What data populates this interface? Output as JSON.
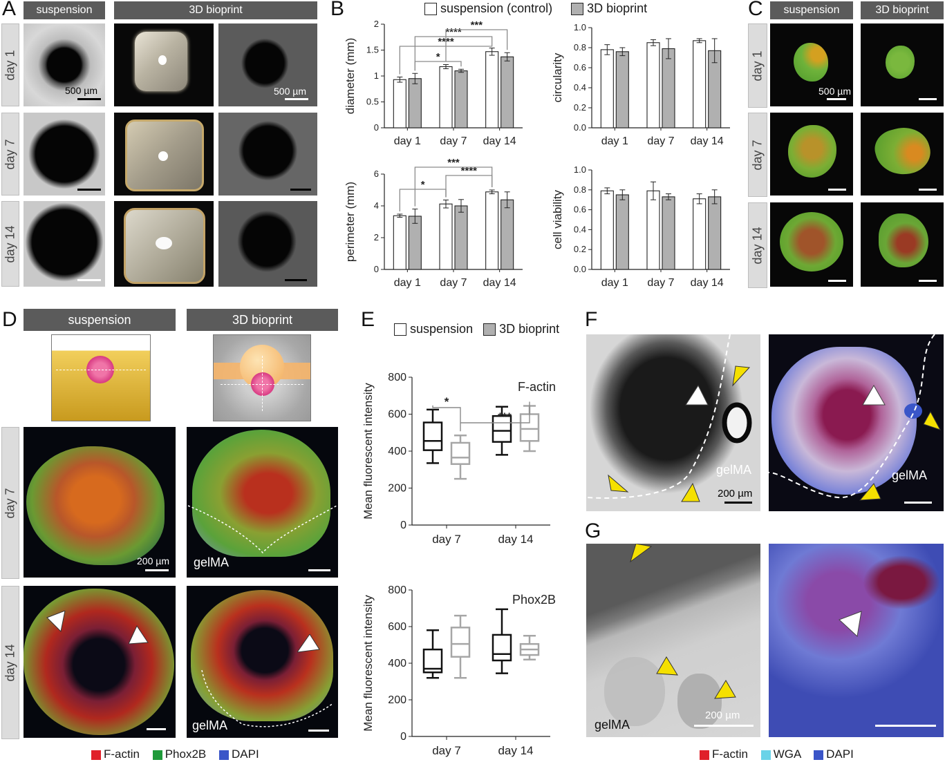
{
  "panels": {
    "A": {
      "label": "A",
      "col_headers": [
        "suspension",
        "3D bioprint"
      ],
      "row_labels": [
        "day 1",
        "day 7",
        "day 14"
      ],
      "scale": "500 µm"
    },
    "B": {
      "label": "B",
      "legend": [
        "suspension (control)",
        "3D bioprint"
      ]
    },
    "C": {
      "label": "C",
      "col_headers": [
        "suspension",
        "3D bioprint"
      ],
      "row_labels": [
        "day 1",
        "day 7",
        "day 14"
      ],
      "scale": "500 µm"
    },
    "D": {
      "label": "D",
      "col_headers": [
        "suspension",
        "3D bioprint"
      ],
      "row_labels": [
        "day 7",
        "day 14"
      ],
      "scale": "200 µm",
      "gel_label": "gelMA",
      "legend": [
        {
          "name": "F-actin",
          "color": "#e0202a"
        },
        {
          "name": "Phox2B",
          "color": "#1f9a3a"
        },
        {
          "name": "DAPI",
          "color": "#3a55c8"
        }
      ]
    },
    "E": {
      "label": "E",
      "legend": [
        "suspension",
        "3D bioprint"
      ]
    },
    "F": {
      "label": "F",
      "gel_label": "gelMA",
      "scale": "200 µm"
    },
    "G": {
      "label": "G",
      "gel_label": "gelMA",
      "scale": "200 µm",
      "legend": [
        {
          "name": "F-actin",
          "color": "#e0202a"
        },
        {
          "name": "WGA",
          "color": "#6ad3e8"
        },
        {
          "name": "DAPI",
          "color": "#3a55c8"
        }
      ]
    }
  },
  "chart_data": [
    {
      "id": "B-diameter",
      "type": "bar",
      "categories": [
        "day 1",
        "day 7",
        "day 14"
      ],
      "ylabel": "diameter (mm)",
      "ylim": [
        0,
        2
      ],
      "yticks": [
        "0",
        "0.5",
        "1",
        "1.5",
        "2"
      ],
      "series": [
        {
          "name": "suspension (control)",
          "values": [
            0.93,
            1.18,
            1.47
          ],
          "errors": [
            0.05,
            0.04,
            0.07
          ]
        },
        {
          "name": "3D bioprint",
          "values": [
            0.95,
            1.1,
            1.37
          ],
          "errors": [
            0.1,
            0.03,
            0.08
          ]
        }
      ],
      "significance": [
        "****",
        "*",
        "****",
        "***"
      ]
    },
    {
      "id": "B-circularity",
      "type": "bar",
      "categories": [
        "day 1",
        "day 7",
        "day 14"
      ],
      "ylabel": "circularity",
      "ylim": [
        0,
        1
      ],
      "yticks": [
        "0.0",
        "0.2",
        "0.4",
        "0.6",
        "0.8",
        "1.0"
      ],
      "series": [
        {
          "name": "suspension (control)",
          "values": [
            0.78,
            0.85,
            0.87
          ],
          "errors": [
            0.05,
            0.03,
            0.02
          ]
        },
        {
          "name": "3D bioprint",
          "values": [
            0.76,
            0.79,
            0.77
          ],
          "errors": [
            0.04,
            0.1,
            0.12
          ]
        }
      ],
      "significance": []
    },
    {
      "id": "B-perimeter",
      "type": "bar",
      "categories": [
        "day 1",
        "day 7",
        "day 14"
      ],
      "ylabel": "perimeter (mm)",
      "ylim": [
        0,
        6
      ],
      "yticks": [
        "0",
        "2",
        "4",
        "6"
      ],
      "series": [
        {
          "name": "suspension (control)",
          "values": [
            3.38,
            4.12,
            4.88
          ],
          "errors": [
            0.1,
            0.25,
            0.12
          ]
        },
        {
          "name": "3D bioprint",
          "values": [
            3.35,
            4.0,
            4.38
          ],
          "errors": [
            0.45,
            0.4,
            0.5
          ]
        }
      ],
      "significance": [
        "*",
        "***",
        "****"
      ]
    },
    {
      "id": "B-viability",
      "type": "bar",
      "categories": [
        "day 1",
        "day 7",
        "day 14"
      ],
      "ylabel": "cell viability",
      "ylim": [
        0,
        1
      ],
      "yticks": [
        "0.0",
        "0.2",
        "0.4",
        "0.6",
        "0.8",
        "1.0"
      ],
      "series": [
        {
          "name": "suspension (control)",
          "values": [
            0.79,
            0.79,
            0.71
          ],
          "errors": [
            0.03,
            0.09,
            0.05
          ]
        },
        {
          "name": "3D bioprint",
          "values": [
            0.75,
            0.73,
            0.73
          ],
          "errors": [
            0.05,
            0.03,
            0.07
          ]
        }
      ],
      "significance": []
    },
    {
      "id": "E-factin",
      "type": "box",
      "title": "F-actin",
      "categories": [
        "day 7",
        "day 14"
      ],
      "ylabel": "Mean fluorescent intensity",
      "ylim": [
        0,
        800
      ],
      "yticks": [
        "0",
        "200",
        "400",
        "600",
        "800"
      ],
      "series": [
        {
          "name": "suspension",
          "boxes": [
            {
              "min": 335,
              "q1": 405,
              "median": 455,
              "q3": 555,
              "max": 625
            },
            {
              "min": 380,
              "q1": 450,
              "median": 510,
              "q3": 590,
              "max": 640
            }
          ]
        },
        {
          "name": "3D bioprint",
          "boxes": [
            {
              "min": 250,
              "q1": 330,
              "median": 365,
              "q3": 445,
              "max": 485
            },
            {
              "min": 400,
              "q1": 455,
              "median": 520,
              "q3": 600,
              "max": 645
            }
          ]
        }
      ],
      "significance": [
        "*",
        "***"
      ]
    },
    {
      "id": "E-phox2b",
      "type": "box",
      "title": "Phox2B",
      "categories": [
        "day 7",
        "day 14"
      ],
      "ylabel": "Mean fluorescent intensity",
      "ylim": [
        0,
        800
      ],
      "yticks": [
        "0",
        "200",
        "400",
        "600",
        "800"
      ],
      "series": [
        {
          "name": "suspension",
          "boxes": [
            {
              "min": 320,
              "q1": 350,
              "median": 370,
              "q3": 475,
              "max": 580
            },
            {
              "min": 345,
              "q1": 415,
              "median": 450,
              "q3": 555,
              "max": 695
            }
          ]
        },
        {
          "name": "3D bioprint",
          "boxes": [
            {
              "min": 320,
              "q1": 435,
              "median": 505,
              "q3": 595,
              "max": 660
            },
            {
              "min": 420,
              "q1": 445,
              "median": 475,
              "q3": 505,
              "max": 550
            }
          ]
        }
      ],
      "significance": []
    }
  ]
}
